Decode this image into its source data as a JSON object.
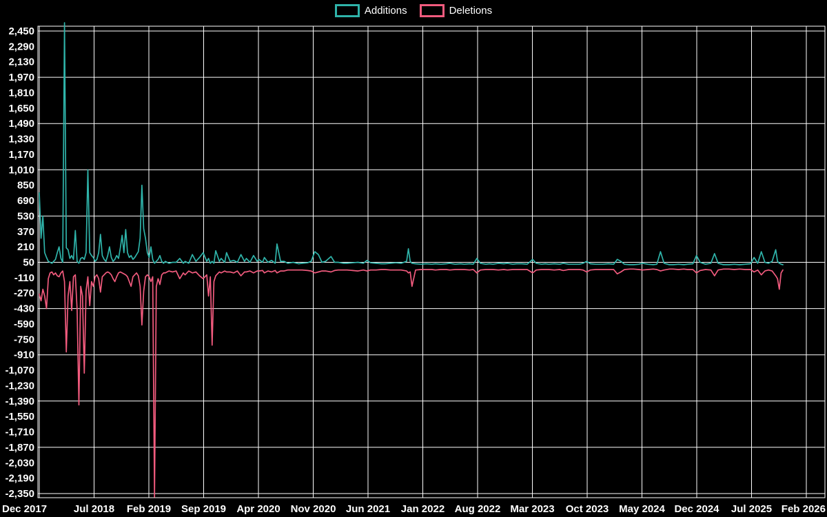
{
  "legend": {
    "items": [
      {
        "label": "Additions",
        "color": "#2fb4aa"
      },
      {
        "label": "Deletions",
        "color": "#f25b7e"
      }
    ]
  },
  "colors": {
    "background": "#000000",
    "grid": "#ffffff",
    "text": "#ffffff"
  },
  "chart_data": {
    "type": "line",
    "title": "",
    "xlabel": "",
    "ylabel": "",
    "x_unit": "weeks since Dec 2017 (weekly code frequency)",
    "weeks_total": 426,
    "x_axis": {
      "tick_labels": [
        "Dec 2017",
        "Jul 2018",
        "Feb 2019",
        "Sep 2019",
        "Apr 2020",
        "Nov 2020",
        "Jun 2021",
        "Jan 2022",
        "Aug 2022",
        "Mar 2023",
        "Oct 2023",
        "May 2024",
        "Dec 2024",
        "Jul 2025",
        "Feb 2026"
      ]
    },
    "y_axis": {
      "max": 2450,
      "min": -2350,
      "step": 160,
      "tick_values": [
        2450,
        2290,
        2130,
        1970,
        1810,
        1650,
        1490,
        1330,
        1170,
        1010,
        850,
        690,
        530,
        370,
        210,
        50,
        -110,
        -270,
        -430,
        -590,
        -750,
        -910,
        -1070,
        -1230,
        -1390,
        -1550,
        -1710,
        -1870,
        -2030,
        -2190,
        -2350
      ],
      "tick_labels": [
        "2,450",
        "2,290",
        "2,130",
        "1,970",
        "1,810",
        "1,650",
        "1,490",
        "1,330",
        "1,170",
        "1,010",
        "850",
        "690",
        "530",
        "370",
        "210",
        "50",
        "-110",
        "-270",
        "-430",
        "-590",
        "-750",
        "-910",
        "-1,070",
        "-1,230",
        "-1,390",
        "-1,550",
        "-1,710",
        "-1,870",
        "-2,030",
        "-2,190",
        "-2,350"
      ]
    },
    "gridline_y_values": [
      2450,
      1970,
      1490,
      1010,
      530,
      50,
      -430,
      -910,
      -1390,
      -1870,
      -2350
    ],
    "grid": true,
    "legend_position": "top-center",
    "series_names": [
      "Additions",
      "Deletions"
    ],
    "series_colors": [
      "#2fb4aa",
      "#f25b7e"
    ],
    "points_format": [
      "week_index",
      "additions",
      "deletions"
    ],
    "points": [
      [
        0,
        770,
        -280
      ],
      [
        1,
        300,
        -350
      ],
      [
        2,
        530,
        -230
      ],
      [
        3,
        150,
        -300
      ],
      [
        4,
        100,
        -430
      ],
      [
        5,
        60,
        -120
      ],
      [
        6,
        50,
        -60
      ],
      [
        7,
        40,
        -50
      ],
      [
        8,
        60,
        -80
      ],
      [
        9,
        80,
        -60
      ],
      [
        10,
        150,
        -90
      ],
      [
        11,
        210,
        -100
      ],
      [
        12,
        90,
        -60
      ],
      [
        13,
        50,
        -40
      ],
      [
        14,
        2600,
        -150
      ],
      [
        15,
        200,
        -880
      ],
      [
        16,
        180,
        -300
      ],
      [
        17,
        90,
        -150
      ],
      [
        18,
        120,
        -450
      ],
      [
        19,
        80,
        -100
      ],
      [
        20,
        380,
        -80
      ],
      [
        21,
        60,
        -440
      ],
      [
        22,
        40,
        -1430
      ],
      [
        23,
        90,
        -200
      ],
      [
        24,
        100,
        -300
      ],
      [
        25,
        80,
        -1100
      ],
      [
        26,
        150,
        -250
      ],
      [
        27,
        1010,
        -100
      ],
      [
        28,
        150,
        -400
      ],
      [
        29,
        120,
        -150
      ],
      [
        30,
        100,
        -200
      ],
      [
        31,
        60,
        -100
      ],
      [
        32,
        80,
        -80
      ],
      [
        33,
        150,
        -120
      ],
      [
        34,
        340,
        -260
      ],
      [
        35,
        120,
        -100
      ],
      [
        36,
        80,
        -80
      ],
      [
        37,
        60,
        -60
      ],
      [
        38,
        120,
        -50
      ],
      [
        39,
        210,
        -60
      ],
      [
        40,
        100,
        -80
      ],
      [
        41,
        60,
        -120
      ],
      [
        42,
        80,
        -150
      ],
      [
        43,
        120,
        -100
      ],
      [
        44,
        90,
        -60
      ],
      [
        45,
        200,
        -50
      ],
      [
        46,
        330,
        -60
      ],
      [
        47,
        150,
        -70
      ],
      [
        48,
        390,
        -80
      ],
      [
        49,
        150,
        -100
      ],
      [
        50,
        100,
        -150
      ],
      [
        51,
        120,
        -200
      ],
      [
        52,
        80,
        -100
      ],
      [
        53,
        100,
        -80
      ],
      [
        54,
        130,
        -60
      ],
      [
        55,
        160,
        -90
      ],
      [
        56,
        300,
        -200
      ],
      [
        57,
        850,
        -600
      ],
      [
        58,
        400,
        -250
      ],
      [
        59,
        300,
        -100
      ],
      [
        60,
        150,
        -80
      ],
      [
        61,
        100,
        -100
      ],
      [
        62,
        210,
        -150
      ],
      [
        63,
        80,
        -100
      ],
      [
        64,
        40,
        -2600
      ],
      [
        65,
        60,
        -200
      ],
      [
        66,
        80,
        -120
      ],
      [
        67,
        120,
        -180
      ],
      [
        68,
        60,
        -80
      ],
      [
        69,
        40,
        -60
      ],
      [
        70,
        60,
        -60
      ],
      [
        72,
        40,
        -40
      ],
      [
        74,
        50,
        -50
      ],
      [
        76,
        50,
        -40
      ],
      [
        78,
        90,
        -120
      ],
      [
        80,
        40,
        -60
      ],
      [
        81,
        60,
        -80
      ],
      [
        83,
        40,
        -40
      ],
      [
        85,
        130,
        -60
      ],
      [
        87,
        60,
        -50
      ],
      [
        89,
        100,
        -90
      ],
      [
        91,
        150,
        -120
      ],
      [
        93,
        60,
        -80
      ],
      [
        94,
        90,
        -300
      ],
      [
        95,
        40,
        -100
      ],
      [
        96,
        60,
        -810
      ],
      [
        97,
        40,
        -150
      ],
      [
        98,
        170,
        -90
      ],
      [
        100,
        60,
        -50
      ],
      [
        101,
        90,
        -60
      ],
      [
        103,
        50,
        -40
      ],
      [
        104,
        150,
        -50
      ],
      [
        106,
        60,
        -50
      ],
      [
        108,
        70,
        -60
      ],
      [
        110,
        50,
        -40
      ],
      [
        112,
        130,
        -90
      ],
      [
        114,
        60,
        -50
      ],
      [
        115,
        90,
        -50
      ],
      [
        117,
        50,
        -40
      ],
      [
        119,
        120,
        -60
      ],
      [
        121,
        60,
        -40
      ],
      [
        122,
        80,
        -40
      ],
      [
        124,
        50,
        -35
      ],
      [
        125,
        100,
        -60
      ],
      [
        127,
        50,
        -40
      ],
      [
        129,
        70,
        -50
      ],
      [
        131,
        40,
        -35
      ],
      [
        132,
        240,
        -60
      ],
      [
        134,
        60,
        -40
      ],
      [
        136,
        60,
        -40
      ],
      [
        138,
        40,
        -30
      ],
      [
        141,
        50,
        -30
      ],
      [
        144,
        35,
        -30
      ],
      [
        146,
        40,
        -30
      ],
      [
        149,
        45,
        -35
      ],
      [
        151,
        60,
        -40
      ],
      [
        153,
        160,
        -60
      ],
      [
        155,
        130,
        -50
      ],
      [
        157,
        50,
        -40
      ],
      [
        159,
        60,
        -40
      ],
      [
        162,
        110,
        -50
      ],
      [
        164,
        50,
        -35
      ],
      [
        166,
        50,
        -30
      ],
      [
        169,
        40,
        -30
      ],
      [
        171,
        40,
        -30
      ],
      [
        174,
        45,
        -35
      ],
      [
        177,
        50,
        -40
      ],
      [
        180,
        40,
        -30
      ],
      [
        182,
        70,
        -40
      ],
      [
        184,
        45,
        -30
      ],
      [
        187,
        40,
        -30
      ],
      [
        190,
        35,
        -25
      ],
      [
        192,
        35,
        -25
      ],
      [
        195,
        40,
        -30
      ],
      [
        198,
        45,
        -30
      ],
      [
        201,
        40,
        -30
      ],
      [
        204,
        60,
        -40
      ],
      [
        205,
        190,
        -60
      ],
      [
        206,
        60,
        -50
      ],
      [
        207,
        40,
        -200
      ],
      [
        209,
        35,
        -30
      ],
      [
        212,
        30,
        -25
      ],
      [
        215,
        35,
        -25
      ],
      [
        218,
        30,
        -25
      ],
      [
        220,
        35,
        -30
      ],
      [
        223,
        30,
        -25
      ],
      [
        226,
        35,
        -25
      ],
      [
        228,
        40,
        -30
      ],
      [
        231,
        30,
        -25
      ],
      [
        234,
        35,
        -25
      ],
      [
        236,
        30,
        -25
      ],
      [
        239,
        35,
        -30
      ],
      [
        241,
        30,
        -25
      ],
      [
        243,
        90,
        -60
      ],
      [
        245,
        40,
        -30
      ],
      [
        248,
        30,
        -25
      ],
      [
        250,
        35,
        -25
      ],
      [
        252,
        30,
        -25
      ],
      [
        255,
        40,
        -30
      ],
      [
        258,
        35,
        -25
      ],
      [
        260,
        40,
        -30
      ],
      [
        263,
        30,
        -25
      ],
      [
        265,
        35,
        -25
      ],
      [
        268,
        35,
        -25
      ],
      [
        271,
        30,
        -25
      ],
      [
        274,
        80,
        -60
      ],
      [
        276,
        40,
        -30
      ],
      [
        279,
        30,
        -25
      ],
      [
        281,
        35,
        -25
      ],
      [
        283,
        30,
        -25
      ],
      [
        286,
        35,
        -30
      ],
      [
        289,
        30,
        -25
      ],
      [
        291,
        40,
        -35
      ],
      [
        294,
        30,
        -25
      ],
      [
        297,
        30,
        -25
      ],
      [
        300,
        30,
        -25
      ],
      [
        302,
        40,
        -30
      ],
      [
        304,
        60,
        -50
      ],
      [
        306,
        35,
        -30
      ],
      [
        309,
        30,
        -25
      ],
      [
        311,
        30,
        -25
      ],
      [
        313,
        30,
        -25
      ],
      [
        316,
        35,
        -25
      ],
      [
        319,
        30,
        -25
      ],
      [
        321,
        80,
        -70
      ],
      [
        323,
        60,
        -50
      ],
      [
        325,
        30,
        -25
      ],
      [
        328,
        25,
        -20
      ],
      [
        330,
        25,
        -20
      ],
      [
        333,
        30,
        -25
      ],
      [
        335,
        40,
        -30
      ],
      [
        338,
        30,
        -25
      ],
      [
        341,
        25,
        -20
      ],
      [
        343,
        30,
        -25
      ],
      [
        345,
        160,
        -40
      ],
      [
        347,
        40,
        -30
      ],
      [
        350,
        25,
        -20
      ],
      [
        352,
        25,
        -20
      ],
      [
        355,
        30,
        -25
      ],
      [
        358,
        25,
        -20
      ],
      [
        360,
        30,
        -25
      ],
      [
        363,
        35,
        -25
      ],
      [
        365,
        120,
        -60
      ],
      [
        367,
        50,
        -35
      ],
      [
        370,
        30,
        -25
      ],
      [
        373,
        40,
        -30
      ],
      [
        375,
        140,
        -90
      ],
      [
        377,
        40,
        -30
      ],
      [
        380,
        25,
        -20
      ],
      [
        383,
        25,
        -20
      ],
      [
        386,
        30,
        -25
      ],
      [
        389,
        25,
        -20
      ],
      [
        392,
        30,
        -25
      ],
      [
        395,
        35,
        -25
      ],
      [
        397,
        100,
        -50
      ],
      [
        399,
        40,
        -30
      ],
      [
        401,
        160,
        -80
      ],
      [
        403,
        50,
        -40
      ],
      [
        405,
        40,
        -30
      ],
      [
        407,
        60,
        -40
      ],
      [
        409,
        180,
        -90
      ],
      [
        410,
        60,
        -120
      ],
      [
        411,
        40,
        -230
      ],
      [
        412,
        30,
        -60
      ],
      [
        413,
        25,
        -30
      ]
    ]
  }
}
